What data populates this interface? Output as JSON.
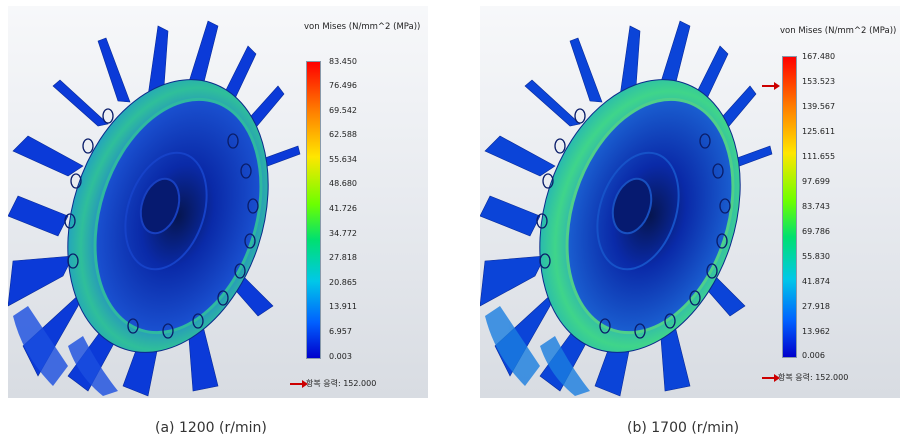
{
  "panels": [
    {
      "legend_title": "von Mises (N/mm^2 (MPa))",
      "ticks": [
        "83.450",
        "76.496",
        "69.542",
        "62.588",
        "55.634",
        "48.680",
        "41.726",
        "34.772",
        "27.818",
        "20.865",
        "13.911",
        "6.957",
        "0.003"
      ],
      "yield_label": "항복 응력: 152.000",
      "caption": "(a)  1200  (r/min)"
    },
    {
      "legend_title": "von Mises (N/mm^2 (MPa))",
      "ticks": [
        "167.480",
        "153.523",
        "139.567",
        "125.611",
        "111.655",
        "97.699",
        "83.743",
        "69.786",
        "55.830",
        "41.874",
        "27.918",
        "13.962",
        "0.006"
      ],
      "yield_label": "항복 응력: 152.000",
      "caption": "(b)  1700  (r/min)"
    }
  ],
  "colors": {
    "max": "#ff0000",
    "min": "#0000cc",
    "marker": "#cc0000",
    "model_base": "#0b2fd6"
  }
}
